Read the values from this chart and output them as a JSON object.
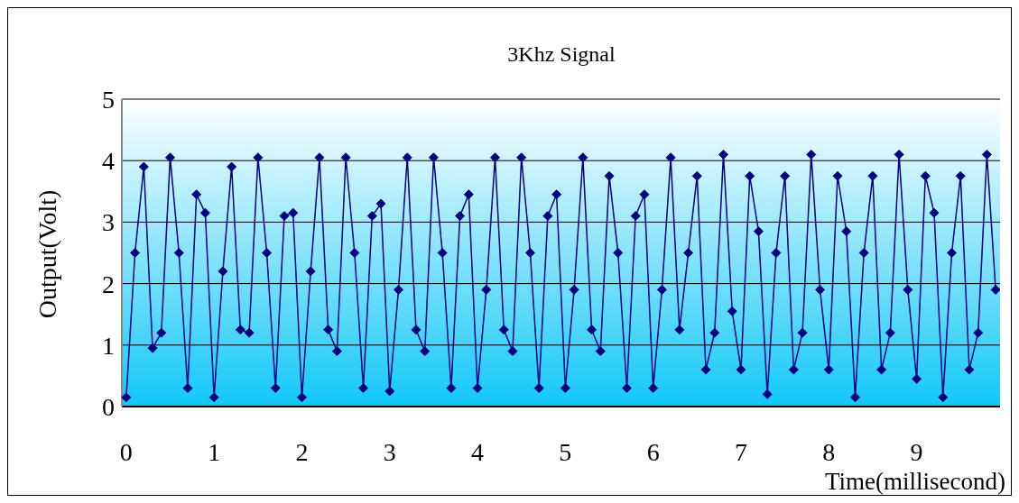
{
  "chart_data": {
    "type": "line",
    "title": "3Khz Signal",
    "xlabel": "Time(millisecond)",
    "ylabel": "Output(Volt)",
    "x": [
      0,
      0.1,
      0.2,
      0.3,
      0.4,
      0.5,
      0.6,
      0.7,
      0.8,
      0.9,
      1,
      1.1,
      1.2,
      1.3,
      1.4,
      1.5,
      1.6,
      1.7,
      1.8,
      1.9,
      2,
      2.1,
      2.2,
      2.3,
      2.4,
      2.5,
      2.6,
      2.7,
      2.8,
      2.9,
      3,
      3.1,
      3.2,
      3.3,
      3.4,
      3.5,
      3.6,
      3.7,
      3.8,
      3.9,
      4,
      4.1,
      4.2,
      4.3,
      4.4,
      4.5,
      4.6,
      4.7,
      4.8,
      4.9,
      5,
      5.1,
      5.2,
      5.3,
      5.4,
      5.5,
      5.6,
      5.7,
      5.8,
      5.9,
      6,
      6.1,
      6.2,
      6.3,
      6.4,
      6.5,
      6.6,
      6.7,
      6.8,
      6.9,
      7,
      7.1,
      7.2,
      7.3,
      7.4,
      7.5,
      7.6,
      7.7,
      7.8,
      7.9,
      8,
      8.1,
      8.2,
      8.3,
      8.4,
      8.5,
      8.6,
      8.7,
      8.8,
      8.9,
      9,
      9.1,
      9.2,
      9.3,
      9.4,
      9.5,
      9.6,
      9.7,
      9.8,
      9.9
    ],
    "series": [
      {
        "color": "#000080",
        "values": [
          0.15,
          2.5,
          3.9,
          0.95,
          1.2,
          4.05,
          2.5,
          0.3,
          3.45,
          3.15,
          0.15,
          2.2,
          3.9,
          1.25,
          1.2,
          4.05,
          2.5,
          0.3,
          3.1,
          3.15,
          0.15,
          2.2,
          4.05,
          1.25,
          0.9,
          4.05,
          2.5,
          0.3,
          3.1,
          3.3,
          0.25,
          1.9,
          4.05,
          1.25,
          0.9,
          4.05,
          2.5,
          0.3,
          3.1,
          3.45,
          0.3,
          1.9,
          4.05,
          1.25,
          0.9,
          4.05,
          2.5,
          0.3,
          3.1,
          3.45,
          0.3,
          1.9,
          4.05,
          1.25,
          0.9,
          3.75,
          2.5,
          0.3,
          3.1,
          3.45,
          0.3,
          1.9,
          4.05,
          1.25,
          2.5,
          3.75,
          0.6,
          1.2,
          4.1,
          1.55,
          0.6,
          3.75,
          2.85,
          0.2,
          2.5,
          3.75,
          0.6,
          1.2,
          4.1,
          1.9,
          0.6,
          3.75,
          2.85,
          0.15,
          2.5,
          3.75,
          0.6,
          1.2,
          4.1,
          1.9,
          0.45,
          3.75,
          3.15,
          0.15,
          2.5,
          3.75,
          0.6,
          1.2,
          4.1,
          1.9
        ]
      }
    ],
    "xlim": [
      -0.05,
      9.95
    ],
    "xticks": [
      0,
      1,
      2,
      3,
      4,
      5,
      6,
      7,
      8,
      9
    ],
    "ylim": [
      0,
      5
    ],
    "yticks": [
      0,
      1,
      2,
      3,
      4,
      5
    ],
    "grid": "y",
    "marker": "diamond",
    "legend": false
  }
}
